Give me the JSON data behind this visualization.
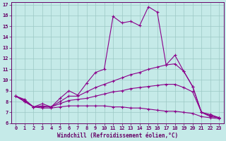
{
  "xlabel": "Windchill (Refroidissement éolien,°C)",
  "background_color": "#c5eae8",
  "grid_color": "#9cc8c5",
  "line_color": "#8b008b",
  "xlim": [
    -0.5,
    23.5
  ],
  "ylim": [
    6,
    17.2
  ],
  "xticks": [
    0,
    1,
    2,
    3,
    4,
    5,
    6,
    7,
    8,
    9,
    10,
    11,
    12,
    13,
    14,
    15,
    16,
    17,
    18,
    19,
    20,
    21,
    22,
    23
  ],
  "yticks": [
    6,
    7,
    8,
    9,
    10,
    11,
    12,
    13,
    14,
    15,
    16,
    17
  ],
  "line1_x": [
    0,
    1,
    2,
    3,
    4,
    5,
    6,
    7,
    8,
    9,
    10,
    11,
    12,
    13,
    14,
    15,
    16,
    17,
    18,
    19,
    20,
    21,
    22,
    23
  ],
  "line1_y": [
    8.5,
    8.2,
    7.5,
    7.8,
    7.5,
    8.3,
    9.0,
    8.6,
    9.7,
    10.7,
    11.0,
    15.9,
    15.3,
    15.45,
    15.05,
    16.8,
    16.3,
    11.4,
    12.3,
    10.8,
    9.4,
    7.0,
    6.6,
    6.5
  ],
  "line2_x": [
    0,
    1,
    2,
    3,
    4,
    5,
    6,
    7,
    8,
    9,
    10,
    11,
    12,
    13,
    14,
    15,
    16,
    17,
    18,
    19,
    20,
    21,
    22,
    23
  ],
  "line2_y": [
    8.5,
    8.1,
    7.5,
    7.6,
    7.5,
    8.0,
    8.5,
    8.5,
    8.9,
    9.3,
    9.6,
    9.9,
    10.2,
    10.5,
    10.7,
    11.0,
    11.2,
    11.4,
    11.5,
    10.8,
    9.4,
    7.0,
    6.7,
    6.5
  ],
  "line3_x": [
    0,
    1,
    2,
    3,
    4,
    5,
    6,
    7,
    8,
    9,
    10,
    11,
    12,
    13,
    14,
    15,
    16,
    17,
    18,
    19,
    20,
    21,
    22,
    23
  ],
  "line3_y": [
    8.5,
    8.0,
    7.5,
    7.5,
    7.5,
    7.8,
    8.1,
    8.2,
    8.3,
    8.5,
    8.7,
    8.9,
    9.0,
    9.2,
    9.3,
    9.4,
    9.5,
    9.6,
    9.6,
    9.3,
    8.9,
    7.0,
    6.8,
    6.5
  ],
  "line4_x": [
    0,
    1,
    2,
    3,
    4,
    5,
    6,
    7,
    8,
    9,
    10,
    11,
    12,
    13,
    14,
    15,
    16,
    17,
    18,
    19,
    20,
    21,
    22,
    23
  ],
  "line4_y": [
    8.5,
    8.0,
    7.5,
    7.4,
    7.4,
    7.5,
    7.6,
    7.6,
    7.6,
    7.6,
    7.6,
    7.5,
    7.5,
    7.4,
    7.4,
    7.3,
    7.2,
    7.1,
    7.1,
    7.0,
    6.9,
    6.6,
    6.5,
    6.4
  ]
}
